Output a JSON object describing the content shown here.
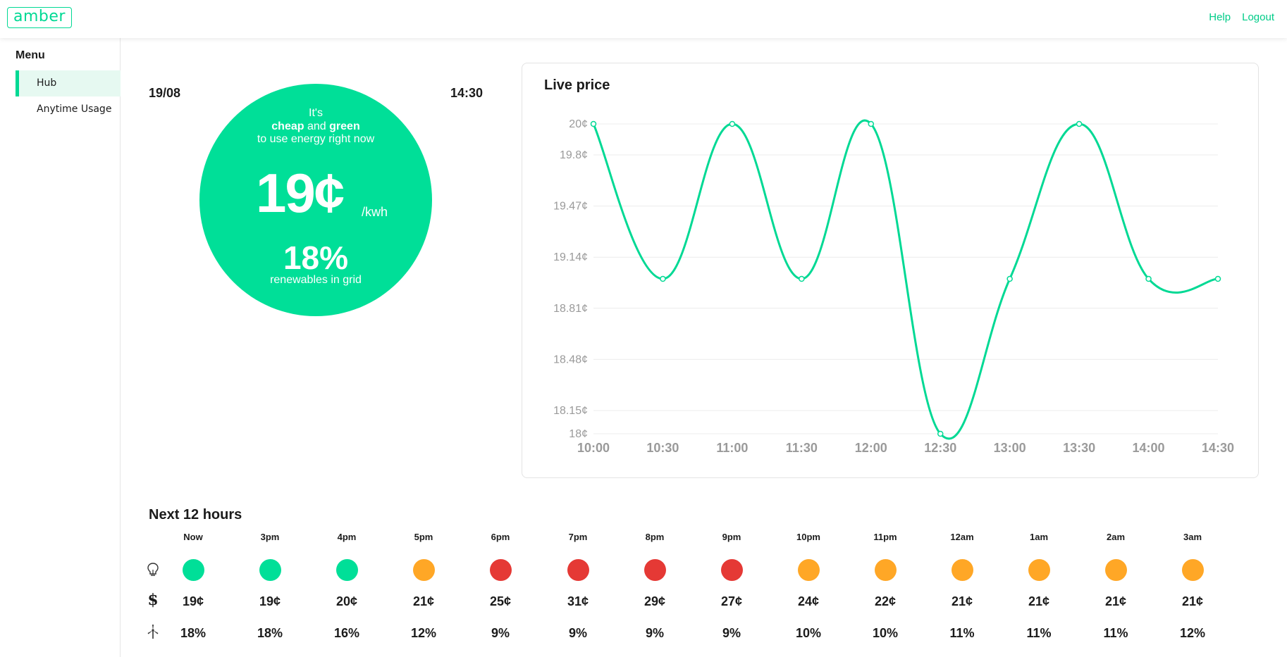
{
  "brand": {
    "logo_text": "amber",
    "accent": "#00d994"
  },
  "header": {
    "links": [
      "Help",
      "Logout"
    ]
  },
  "sidebar": {
    "title": "Menu",
    "items": [
      {
        "label": "Hub",
        "active": true
      },
      {
        "label": "Anytime Usage",
        "active": false
      }
    ]
  },
  "hub": {
    "date": "19/08",
    "time": "14:30",
    "line1": "It's",
    "line2_a": "cheap",
    "line2_b": "and",
    "line2_c": "green",
    "line3": "to use energy right now",
    "price": "19¢",
    "price_unit": "/kwh",
    "renewables": "18%",
    "renewables_label": "renewables in grid"
  },
  "chart_data": {
    "type": "line",
    "title": "Live price",
    "x": [
      "10:00",
      "10:30",
      "11:00",
      "11:30",
      "12:00",
      "12:30",
      "13:00",
      "13:30",
      "14:00",
      "14:30"
    ],
    "y": [
      20,
      19,
      20,
      19,
      20,
      18,
      19,
      20,
      19,
      19
    ],
    "y_ticks": [
      "18¢",
      "18.15¢",
      "18.48¢",
      "18.81¢",
      "19.14¢",
      "19.47¢",
      "19.8¢",
      "20¢"
    ],
    "y_tick_values": [
      18,
      18.15,
      18.48,
      18.81,
      19.14,
      19.47,
      19.8,
      20
    ],
    "ylim": [
      18,
      20
    ],
    "grid": true,
    "line_color": "#00d994"
  },
  "forecast": {
    "title": "Next 12 hours",
    "icons": [
      "bulb-icon",
      "dollar-icon",
      "wind-turbine-icon"
    ],
    "colors": {
      "green": "#00df98",
      "orange": "#ffa726",
      "red": "#e53935"
    },
    "hours": [
      {
        "label": "Now",
        "status": "green",
        "price": "19¢",
        "renewables": "18%"
      },
      {
        "label": "3pm",
        "status": "green",
        "price": "19¢",
        "renewables": "18%"
      },
      {
        "label": "4pm",
        "status": "green",
        "price": "20¢",
        "renewables": "16%"
      },
      {
        "label": "5pm",
        "status": "orange",
        "price": "21¢",
        "renewables": "12%"
      },
      {
        "label": "6pm",
        "status": "red",
        "price": "25¢",
        "renewables": "9%"
      },
      {
        "label": "7pm",
        "status": "red",
        "price": "31¢",
        "renewables": "9%"
      },
      {
        "label": "8pm",
        "status": "red",
        "price": "29¢",
        "renewables": "9%"
      },
      {
        "label": "9pm",
        "status": "red",
        "price": "27¢",
        "renewables": "9%"
      },
      {
        "label": "10pm",
        "status": "orange",
        "price": "24¢",
        "renewables": "10%"
      },
      {
        "label": "11pm",
        "status": "orange",
        "price": "22¢",
        "renewables": "10%"
      },
      {
        "label": "12am",
        "status": "orange",
        "price": "21¢",
        "renewables": "11%"
      },
      {
        "label": "1am",
        "status": "orange",
        "price": "21¢",
        "renewables": "11%"
      },
      {
        "label": "2am",
        "status": "orange",
        "price": "21¢",
        "renewables": "11%"
      },
      {
        "label": "3am",
        "status": "orange",
        "price": "21¢",
        "renewables": "12%"
      }
    ]
  }
}
